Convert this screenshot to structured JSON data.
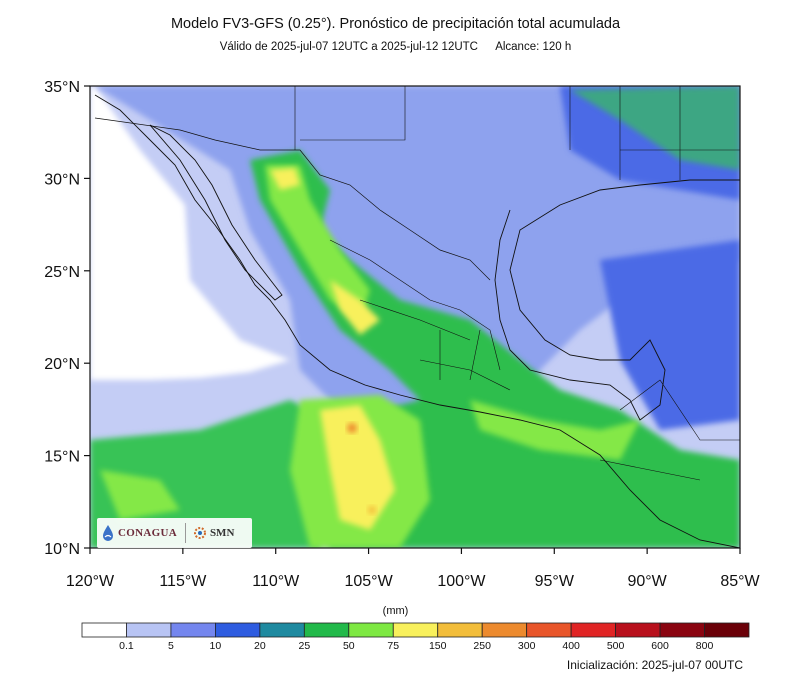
{
  "header": {
    "title": "Modelo FV3-GFS (0.25°). Pronóstico de precipitación total acumulada",
    "valid": "Válido de 2025-jul-07 12UTC a 2025-jul-12 12UTC",
    "range": "Alcance: 120 h"
  },
  "map": {
    "lon_labels": [
      "120°W",
      "115°W",
      "110°W",
      "105°W",
      "100°W",
      "95°W",
      "90°W",
      "85°W"
    ],
    "lat_labels": [
      "35°N",
      "30°N",
      "25°N",
      "20°N",
      "15°N",
      "10°N"
    ],
    "ocean_background": "#c4cdf5",
    "land_background": "#8aa2ee"
  },
  "legend": {
    "units": "(mm)",
    "ticks": [
      "0.1",
      "5",
      "10",
      "20",
      "25",
      "50",
      "75",
      "150",
      "250",
      "300",
      "400",
      "500",
      "600",
      "800"
    ],
    "colors": [
      "#ffffff",
      "#b8c4f4",
      "#7486ee",
      "#2e5ce0",
      "#1f8aa0",
      "#22b94a",
      "#7ee842",
      "#f8f05c",
      "#f2bd3a",
      "#ec8a2e",
      "#e8552a",
      "#e02424",
      "#b8101c",
      "#8a0410",
      "#6a0008"
    ]
  },
  "logos": {
    "conagua": "CONAGUA",
    "smn": "SMN"
  },
  "footer": {
    "init": "Inicialización: 2025-jul-07 00UTC"
  }
}
